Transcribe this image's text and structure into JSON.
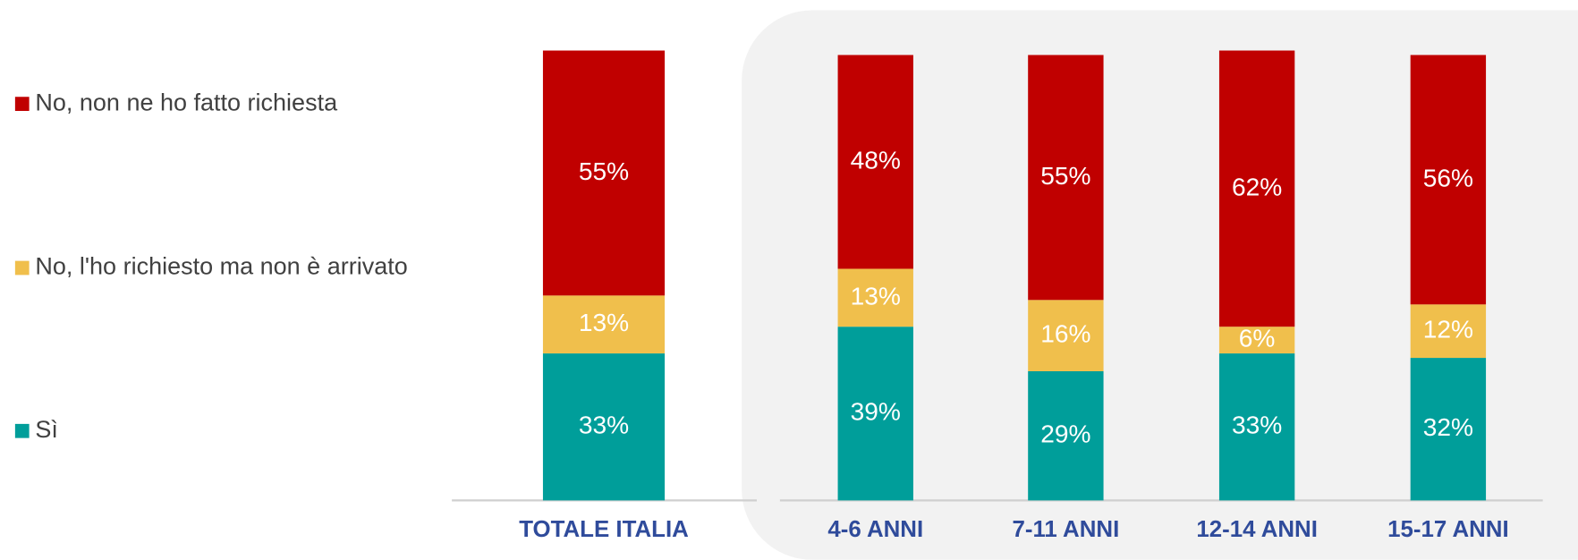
{
  "chart_data": {
    "type": "stacked_bar",
    "categories": [
      "TOTALE ITALIA",
      "4-6 ANNI",
      "7-11 ANNI",
      "12-14 ANNI",
      "15-17 ANNI"
    ],
    "series": [
      {
        "name": "Sì",
        "color": "#009e9a",
        "values": [
          33,
          39,
          29,
          33,
          32
        ],
        "value_labels": [
          "33%",
          "39%",
          "29%",
          "33%",
          "32%"
        ]
      },
      {
        "name": "No, l'ho richiesto ma non è arrivato",
        "color": "#f0bf4c",
        "values": [
          13,
          13,
          16,
          6,
          12
        ],
        "value_labels": [
          "13%",
          "13%",
          "16%",
          "6%",
          "12%"
        ]
      },
      {
        "name": "No, non ne ho fatto richiesta",
        "color": "#c00000",
        "values": [
          55,
          48,
          55,
          62,
          56
        ],
        "value_labels": [
          "55%",
          "48%",
          "55%",
          "62%",
          "56%"
        ]
      }
    ],
    "ylim": [
      0,
      101
    ]
  }
}
